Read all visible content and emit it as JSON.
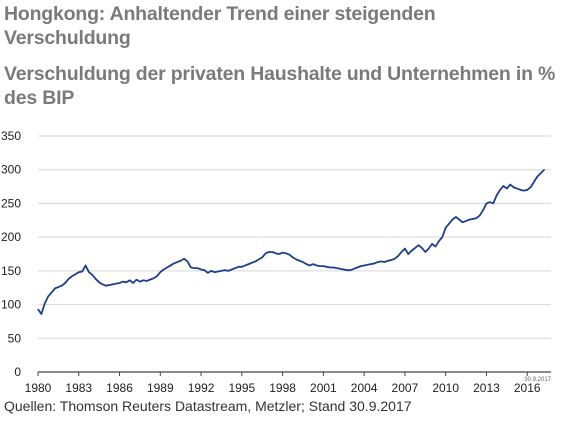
{
  "title": "Hongkong: Anhaltender Trend einer steigenden Verschuldung",
  "subtitle": "Verschuldung der privaten Haushalte und Unternehmen in % des BIP",
  "source": "Quellen: Thomson Reuters Datastream, Metzler; Stand 30.9.2017",
  "stamp": "30.9.2017",
  "colors": {
    "line": "#1f3f8a",
    "grid": "#d6d6d6",
    "title": "#7a7a7a",
    "axis": "#444444"
  },
  "chart_data": {
    "type": "line",
    "title": "Hongkong: Anhaltender Trend einer steigenden Verschuldung",
    "subtitle": "Verschuldung der privaten Haushalte und Unternehmen in % des BIP",
    "xlabel": "",
    "ylabel": "",
    "xlim": [
      1980,
      2017.75
    ],
    "ylim": [
      0,
      350
    ],
    "x_ticks": [
      1980,
      1983,
      1986,
      1989,
      1992,
      1995,
      1998,
      2001,
      2004,
      2007,
      2010,
      2013,
      2016
    ],
    "y_ticks": [
      0,
      50,
      100,
      150,
      200,
      250,
      300,
      350
    ],
    "grid": true,
    "legend": "none",
    "series": [
      {
        "name": "",
        "x": [
          1980.0,
          1980.25,
          1980.5,
          1980.75,
          1981.0,
          1981.25,
          1981.5,
          1981.75,
          1982.0,
          1982.25,
          1982.5,
          1982.75,
          1983.0,
          1983.25,
          1983.5,
          1983.75,
          1984.0,
          1984.25,
          1984.5,
          1984.75,
          1985.0,
          1985.25,
          1985.5,
          1985.75,
          1986.0,
          1986.25,
          1986.5,
          1986.75,
          1987.0,
          1987.25,
          1987.5,
          1987.75,
          1988.0,
          1988.25,
          1988.5,
          1988.75,
          1989.0,
          1989.25,
          1989.5,
          1989.75,
          1990.0,
          1990.25,
          1990.5,
          1990.75,
          1991.0,
          1991.25,
          1991.5,
          1991.75,
          1992.0,
          1992.25,
          1992.5,
          1992.75,
          1993.0,
          1993.25,
          1993.5,
          1993.75,
          1994.0,
          1994.25,
          1994.5,
          1994.75,
          1995.0,
          1995.25,
          1995.5,
          1995.75,
          1996.0,
          1996.25,
          1996.5,
          1996.75,
          1997.0,
          1997.25,
          1997.5,
          1997.75,
          1998.0,
          1998.25,
          1998.5,
          1998.75,
          1999.0,
          1999.25,
          1999.5,
          1999.75,
          2000.0,
          2000.25,
          2000.5,
          2000.75,
          2001.0,
          2001.25,
          2001.5,
          2001.75,
          2002.0,
          2002.25,
          2002.5,
          2002.75,
          2003.0,
          2003.25,
          2003.5,
          2003.75,
          2004.0,
          2004.25,
          2004.5,
          2004.75,
          2005.0,
          2005.25,
          2005.5,
          2005.75,
          2006.0,
          2006.25,
          2006.5,
          2006.75,
          2007.0,
          2007.25,
          2007.5,
          2007.75,
          2008.0,
          2008.25,
          2008.5,
          2008.75,
          2009.0,
          2009.25,
          2009.5,
          2009.75,
          2010.0,
          2010.25,
          2010.5,
          2010.75,
          2011.0,
          2011.25,
          2011.5,
          2011.75,
          2012.0,
          2012.25,
          2012.5,
          2012.75,
          2013.0,
          2013.25,
          2013.5,
          2013.75,
          2014.0,
          2014.25,
          2014.5,
          2014.75,
          2015.0,
          2015.25,
          2015.5,
          2015.75,
          2016.0,
          2016.25,
          2016.5,
          2016.75,
          2017.0,
          2017.25
        ],
        "values": [
          93,
          86,
          102,
          112,
          118,
          124,
          126,
          128,
          132,
          138,
          142,
          145,
          148,
          149,
          158,
          148,
          144,
          138,
          133,
          130,
          128,
          129,
          130,
          131,
          132,
          134,
          133,
          136,
          132,
          137,
          134,
          136,
          135,
          137,
          139,
          142,
          148,
          152,
          155,
          158,
          161,
          163,
          165,
          168,
          164,
          155,
          154,
          154,
          152,
          151,
          147,
          150,
          148,
          149,
          150,
          151,
          150,
          152,
          154,
          156,
          156,
          158,
          160,
          162,
          164,
          167,
          170,
          176,
          178,
          178,
          176,
          175,
          177,
          176,
          174,
          170,
          167,
          165,
          163,
          160,
          158,
          160,
          158,
          157,
          157,
          156,
          155,
          155,
          154,
          153,
          152,
          151,
          151,
          153,
          155,
          157,
          158,
          159,
          160,
          161,
          163,
          164,
          163,
          165,
          166,
          168,
          172,
          178,
          183,
          175,
          180,
          184,
          188,
          184,
          178,
          183,
          190,
          186,
          194,
          200,
          214,
          220,
          226,
          230,
          226,
          222,
          224,
          226,
          227,
          228,
          232,
          240,
          250,
          252,
          250,
          262,
          270,
          276,
          272,
          278,
          274,
          272,
          270,
          269,
          270,
          274,
          282,
          290,
          295,
          300
        ]
      }
    ]
  }
}
